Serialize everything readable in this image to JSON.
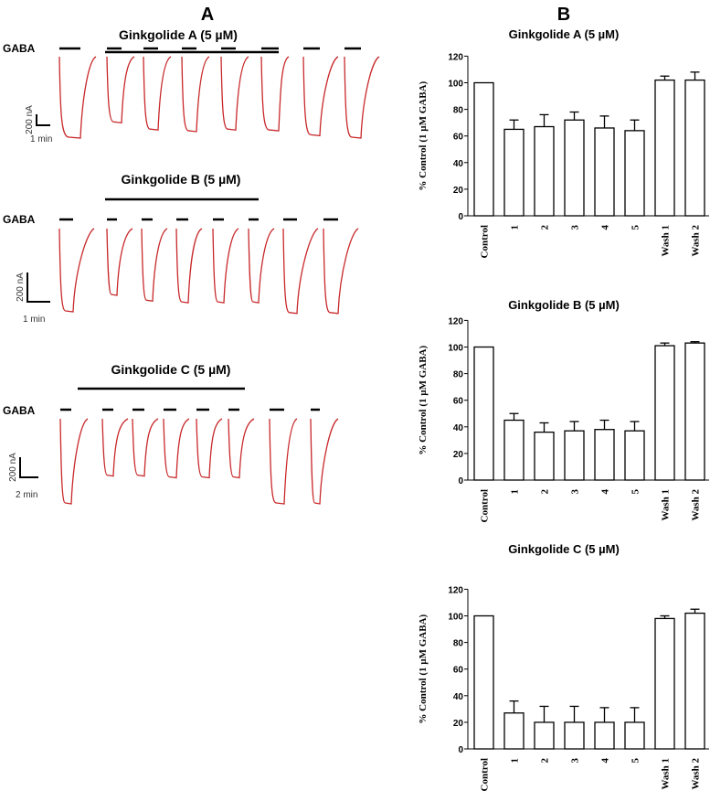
{
  "panel_a": {
    "label": "A",
    "gaba_label": "GABA",
    "trace_color": "#c8282a",
    "rows": [
      {
        "title": "Ginkgolide A (5 µM)",
        "scale_current": "200 nA",
        "scale_time": "1 min",
        "relative_amplitudes": [
          1.0,
          0.81,
          0.9,
          0.92,
          0.9,
          0.91,
          0.97,
          1.0
        ]
      },
      {
        "title": "Ginkgolide B (5 µM)",
        "scale_current": "200 nA",
        "scale_time": "1 min",
        "relative_amplitudes": [
          1.0,
          0.8,
          0.87,
          0.89,
          0.89,
          0.89,
          1.02,
          1.02
        ]
      },
      {
        "title": "Ginkgolide C (5 µM)",
        "scale_current": "200 nA",
        "scale_time": "2 min",
        "relative_amplitudes": [
          1.0,
          0.67,
          0.67,
          0.69,
          0.69,
          0.69,
          1.0,
          1.0
        ]
      }
    ]
  },
  "panel_b": {
    "label": "B"
  },
  "chart_data": [
    {
      "type": "bar",
      "title": "Ginkgolide A (5 µM)",
      "ylabel": "% Control (1 µM GABA)",
      "xlabel": "",
      "categories": [
        "Control",
        "1",
        "2",
        "3",
        "4",
        "5",
        "Wash 1",
        "Wash 2"
      ],
      "values": [
        100,
        65,
        67,
        72,
        66,
        64,
        102,
        102
      ],
      "errors": [
        0,
        7,
        9,
        6,
        9,
        8,
        3,
        6
      ],
      "ylim": [
        0,
        120
      ],
      "yticks": [
        "0",
        "20",
        "40",
        "60",
        "80",
        "100",
        "120"
      ],
      "grid": false
    },
    {
      "type": "bar",
      "title": "Ginkgolide B (5 µM)",
      "ylabel": "% Control (1 µM GABA)",
      "xlabel": "",
      "categories": [
        "Control",
        "1",
        "2",
        "3",
        "4",
        "5",
        "Wash 1",
        "Wash 2"
      ],
      "values": [
        100,
        45,
        36,
        37,
        38,
        37,
        101,
        103
      ],
      "errors": [
        0,
        5,
        7,
        7,
        7,
        7,
        2,
        1
      ],
      "ylim": [
        0,
        120
      ],
      "yticks": [
        "0",
        "20",
        "40",
        "60",
        "80",
        "100",
        "120"
      ],
      "grid": false
    },
    {
      "type": "bar",
      "title": "Ginkgolide C (5 µM)",
      "ylabel": "% Control (1 µM GABA)",
      "xlabel": "",
      "categories": [
        "Control",
        "1",
        "2",
        "3",
        "4",
        "5",
        "Wash 1",
        "Wash 2"
      ],
      "values": [
        100,
        27,
        20,
        20,
        20,
        20,
        98,
        102
      ],
      "errors": [
        0,
        9,
        12,
        12,
        11,
        11,
        2,
        3
      ],
      "ylim": [
        0,
        120
      ],
      "yticks": [
        "0",
        "20",
        "40",
        "60",
        "80",
        "100",
        "120"
      ],
      "grid": false
    }
  ]
}
